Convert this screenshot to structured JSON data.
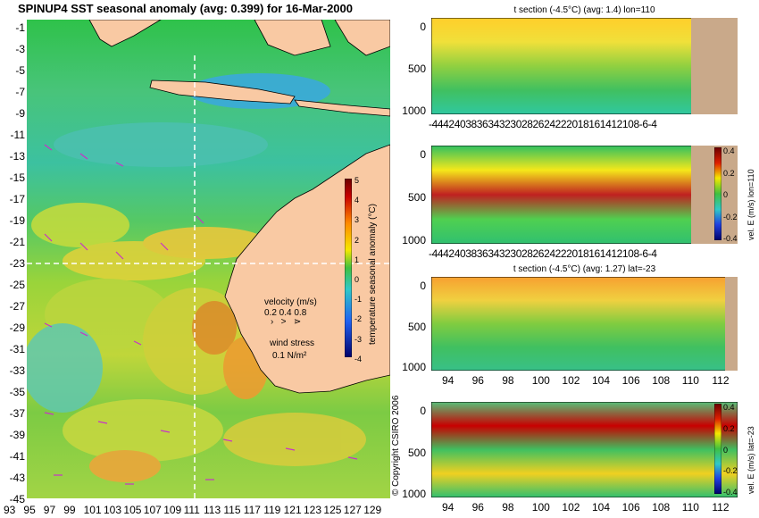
{
  "map": {
    "title": "SPINUP4 SST seasonal anomaly (avg: 0.399) for 16-Mar-2000",
    "lat_labels": [
      "-1",
      "-3",
      "-5",
      "-7",
      "-9",
      "-11",
      "-13",
      "-15",
      "-17",
      "-19",
      "-21",
      "-23",
      "-25",
      "-27",
      "-29",
      "-31",
      "-33",
      "-35",
      "-37",
      "-39",
      "-41",
      "-43",
      "-45"
    ],
    "lon_labels": [
      "93",
      "95",
      "97",
      "99",
      "101",
      "103",
      "105",
      "107",
      "109",
      "111",
      "113",
      "115",
      "117",
      "119",
      "121",
      "123",
      "125",
      "127",
      "129"
    ],
    "lon_labels_rendered": [
      "93",
      "95",
      "97",
      "99",
      "101",
      "103",
      "105",
      "107",
      "109",
      "111",
      "113",
      "115",
      "117",
      "119",
      "121",
      "123",
      "125",
      "127",
      "129"
    ],
    "colorbar": {
      "label": "temperature seasonal anomaly (°C)",
      "ticks": [
        "5",
        "4",
        "3",
        "2",
        "1",
        "0",
        "-1",
        "-2",
        "-3",
        "-4"
      ]
    },
    "velocity_legend": {
      "title": "velocity (m/s)",
      "values": "0.2 0.4 0.8"
    },
    "wind_legend": {
      "title": "wind stress",
      "value": "0.1 N/m²"
    },
    "copyright": "© Copyright CSIRO 2006",
    "colors": {
      "land": "#f9c9a3",
      "ocean_base": "#22c04a",
      "arrow": "#c832c8",
      "section_line": "#ffffff"
    }
  },
  "panels": [
    {
      "title": "t section (-4.5°C) (avg: 1.4) lon=110",
      "y_ticks": [
        "0",
        "500",
        "1000"
      ],
      "x_ticks_text": "-4442403836343230282624222018161412108-6-4",
      "colorbar": null
    },
    {
      "title": "",
      "y_ticks": [
        "0",
        "500",
        "1000"
      ],
      "x_ticks_text": "-4442403836343230282624222018161412108-6-4",
      "colorbar": {
        "label": "vel. E (m/s) lon=110",
        "ticks": [
          "0.4",
          "0.2",
          "0",
          "-0.2",
          "-0.4"
        ]
      }
    },
    {
      "title": "t section (-4.5°C) (avg: 1.27) lat=-23",
      "y_ticks": [
        "0",
        "500",
        "1000"
      ],
      "x_ticks": [
        "94",
        "96",
        "98",
        "100",
        "102",
        "104",
        "106",
        "108",
        "110",
        "112"
      ],
      "colorbar": null
    },
    {
      "title": "",
      "y_ticks": [
        "0",
        "500",
        "1000"
      ],
      "x_ticks": [
        "94",
        "96",
        "98",
        "100",
        "102",
        "104",
        "106",
        "108",
        "110",
        "112"
      ],
      "colorbar": {
        "label": "vel. E (m/s) lat=-23",
        "ticks": [
          "0.4",
          "0.2",
          "0",
          "-0.2",
          "-0.4"
        ]
      }
    }
  ]
}
